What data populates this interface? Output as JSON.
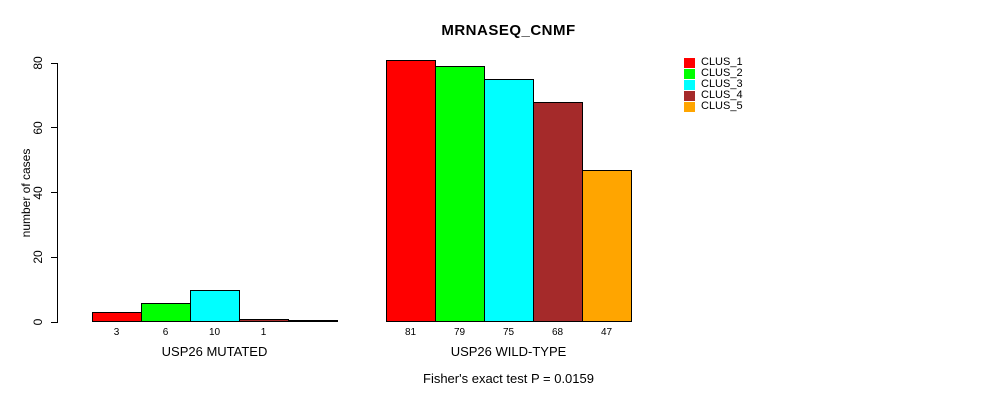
{
  "chart_data": {
    "type": "bar",
    "title": "MRNASEQ_CNMF",
    "ylabel": "number of cases",
    "xlabel": "",
    "ylim": [
      0,
      80
    ],
    "yticks": [
      0,
      20,
      40,
      60,
      80
    ],
    "grid": false,
    "legend_position": "right",
    "categories": [
      "USP26 MUTATED",
      "USP26 WILD-TYPE"
    ],
    "series": [
      {
        "name": "CLUS_1",
        "color": "#FF0000",
        "values": [
          3,
          81
        ]
      },
      {
        "name": "CLUS_2",
        "color": "#00FF00",
        "values": [
          6,
          79
        ]
      },
      {
        "name": "CLUS_3",
        "color": "#00FFFF",
        "values": [
          10,
          75
        ]
      },
      {
        "name": "CLUS_4",
        "color": "#A52A2A",
        "values": [
          1,
          68
        ]
      },
      {
        "name": "CLUS_5",
        "color": "#FFA500",
        "values": [
          0,
          47
        ]
      }
    ],
    "bar_value_labels": [
      [
        "3",
        "6",
        "10",
        "1",
        ""
      ],
      [
        "81",
        "79",
        "75",
        "68",
        "47"
      ]
    ],
    "annotation": "Fisher's exact test P = 0.0159"
  }
}
